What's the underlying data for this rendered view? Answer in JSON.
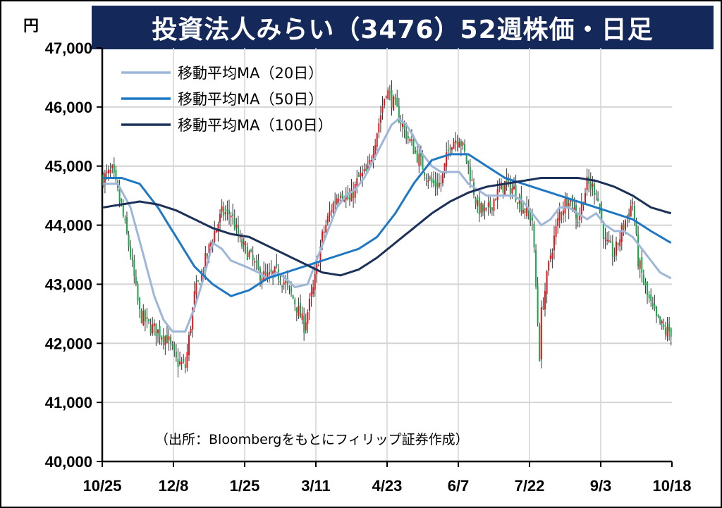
{
  "title": "投資法人みらい（3476）52週株価・日足",
  "source": "（出所：Bloombergをもとにフィリップ証券作成）",
  "colors": {
    "title_bg": "#14295a",
    "up": "#e8141c",
    "down": "#1aa64a",
    "ma20": "#9eb6d8",
    "ma50": "#1f78c4",
    "ma100": "#1b3158",
    "grid": "#d4d4d4"
  },
  "chart_data": {
    "type": "candlestick",
    "title": "投資法人みらい（3476）52週株価・日足",
    "yunit": "円",
    "ylim": [
      40000,
      47000
    ],
    "y_ticks": [
      "47,000",
      "46,000",
      "45,000",
      "44,000",
      "43,000",
      "42,000",
      "41,000",
      "40,000"
    ],
    "x_ticks": [
      "10/25",
      "12/8",
      "1/25",
      "3/11",
      "4/23",
      "6/7",
      "7/22",
      "9/3",
      "10/18"
    ],
    "grid": true,
    "legend_position": "top-left",
    "legend": [
      "移動平均MA（20日）",
      "移動平均MA（50日）",
      "移動平均MA（100日）"
    ],
    "close_keypoints": [
      [
        0,
        44800
      ],
      [
        5,
        44900
      ],
      [
        10,
        44300
      ],
      [
        15,
        43500
      ],
      [
        20,
        42500
      ],
      [
        25,
        42300
      ],
      [
        30,
        42200
      ],
      [
        35,
        42100
      ],
      [
        40,
        41700
      ],
      [
        45,
        41600
      ],
      [
        50,
        42800
      ],
      [
        55,
        43300
      ],
      [
        60,
        43800
      ],
      [
        65,
        44200
      ],
      [
        70,
        44200
      ],
      [
        75,
        43700
      ],
      [
        80,
        43500
      ],
      [
        85,
        43200
      ],
      [
        90,
        43100
      ],
      [
        95,
        43200
      ],
      [
        100,
        43000
      ],
      [
        105,
        42700
      ],
      [
        110,
        42300
      ],
      [
        115,
        42900
      ],
      [
        120,
        43800
      ],
      [
        125,
        44300
      ],
      [
        130,
        44600
      ],
      [
        135,
        44400
      ],
      [
        140,
        44800
      ],
      [
        145,
        44900
      ],
      [
        150,
        45600
      ],
      [
        155,
        46300
      ],
      [
        160,
        46000
      ],
      [
        165,
        45600
      ],
      [
        170,
        45300
      ],
      [
        175,
        45000
      ],
      [
        180,
        44700
      ],
      [
        185,
        44700
      ],
      [
        190,
        45400
      ],
      [
        195,
        45500
      ],
      [
        200,
        45000
      ],
      [
        205,
        44300
      ],
      [
        210,
        44200
      ],
      [
        215,
        44500
      ],
      [
        220,
        44700
      ],
      [
        225,
        44600
      ],
      [
        230,
        44300
      ],
      [
        235,
        44100
      ],
      [
        239,
        41800
      ],
      [
        240,
        42500
      ],
      [
        245,
        43500
      ],
      [
        250,
        44200
      ],
      [
        255,
        44500
      ],
      [
        260,
        44100
      ],
      [
        265,
        44700
      ],
      [
        270,
        44600
      ],
      [
        275,
        43700
      ],
      [
        280,
        43500
      ],
      [
        285,
        44000
      ],
      [
        290,
        44400
      ],
      [
        293,
        43400
      ],
      [
        298,
        42800
      ],
      [
        303,
        42400
      ],
      [
        308,
        42200
      ],
      [
        311,
        42200
      ]
    ],
    "series": [
      {
        "name": "移動平均MA（20日）",
        "keypoints": [
          [
            0,
            44700
          ],
          [
            8,
            44700
          ],
          [
            15,
            44300
          ],
          [
            22,
            43500
          ],
          [
            28,
            42800
          ],
          [
            33,
            42400
          ],
          [
            38,
            42200
          ],
          [
            45,
            42200
          ],
          [
            50,
            42600
          ],
          [
            55,
            43100
          ],
          [
            60,
            43700
          ],
          [
            65,
            43600
          ],
          [
            70,
            43400
          ],
          [
            78,
            43300
          ],
          [
            85,
            43200
          ],
          [
            90,
            43100
          ],
          [
            95,
            43200
          ],
          [
            100,
            43100
          ],
          [
            105,
            42950
          ],
          [
            112,
            43000
          ],
          [
            118,
            43500
          ],
          [
            123,
            43900
          ],
          [
            128,
            44300
          ],
          [
            133,
            44500
          ],
          [
            138,
            44600
          ],
          [
            143,
            44800
          ],
          [
            148,
            45100
          ],
          [
            153,
            45400
          ],
          [
            158,
            45700
          ],
          [
            162,
            45800
          ],
          [
            166,
            45700
          ],
          [
            170,
            45500
          ],
          [
            175,
            45200
          ],
          [
            180,
            45000
          ],
          [
            185,
            44900
          ],
          [
            190,
            44900
          ],
          [
            195,
            44900
          ],
          [
            200,
            44700
          ],
          [
            205,
            44600
          ],
          [
            210,
            44500
          ],
          [
            215,
            44500
          ],
          [
            220,
            44500
          ],
          [
            225,
            44500
          ],
          [
            230,
            44400
          ],
          [
            235,
            44200
          ],
          [
            240,
            44000
          ],
          [
            245,
            44100
          ],
          [
            250,
            44300
          ],
          [
            255,
            44300
          ],
          [
            260,
            44200
          ],
          [
            265,
            44100
          ],
          [
            270,
            44200
          ],
          [
            275,
            44000
          ],
          [
            280,
            43900
          ],
          [
            285,
            43900
          ],
          [
            290,
            43800
          ],
          [
            295,
            43600
          ],
          [
            300,
            43400
          ],
          [
            305,
            43200
          ],
          [
            311,
            43100
          ]
        ]
      },
      {
        "name": "移動平均MA（50日）",
        "keypoints": [
          [
            0,
            44800
          ],
          [
            10,
            44800
          ],
          [
            20,
            44700
          ],
          [
            30,
            44300
          ],
          [
            40,
            43800
          ],
          [
            50,
            43300
          ],
          [
            60,
            43000
          ],
          [
            70,
            42800
          ],
          [
            80,
            42900
          ],
          [
            90,
            43100
          ],
          [
            100,
            43200
          ],
          [
            110,
            43300
          ],
          [
            120,
            43400
          ],
          [
            130,
            43500
          ],
          [
            140,
            43600
          ],
          [
            150,
            43800
          ],
          [
            160,
            44200
          ],
          [
            170,
            44700
          ],
          [
            180,
            45100
          ],
          [
            190,
            45200
          ],
          [
            200,
            45200
          ],
          [
            210,
            45000
          ],
          [
            220,
            44800
          ],
          [
            230,
            44700
          ],
          [
            240,
            44600
          ],
          [
            250,
            44500
          ],
          [
            260,
            44400
          ],
          [
            270,
            44300
          ],
          [
            280,
            44200
          ],
          [
            290,
            44100
          ],
          [
            300,
            43900
          ],
          [
            311,
            43700
          ]
        ]
      },
      {
        "name": "移動平均MA（100日）",
        "keypoints": [
          [
            0,
            44300
          ],
          [
            10,
            44350
          ],
          [
            20,
            44400
          ],
          [
            30,
            44350
          ],
          [
            40,
            44250
          ],
          [
            50,
            44100
          ],
          [
            60,
            43950
          ],
          [
            70,
            43850
          ],
          [
            80,
            43800
          ],
          [
            90,
            43650
          ],
          [
            100,
            43500
          ],
          [
            110,
            43350
          ],
          [
            120,
            43200
          ],
          [
            130,
            43150
          ],
          [
            140,
            43250
          ],
          [
            150,
            43450
          ],
          [
            160,
            43700
          ],
          [
            170,
            43950
          ],
          [
            180,
            44200
          ],
          [
            190,
            44400
          ],
          [
            200,
            44550
          ],
          [
            210,
            44650
          ],
          [
            220,
            44700
          ],
          [
            230,
            44750
          ],
          [
            240,
            44800
          ],
          [
            250,
            44800
          ],
          [
            260,
            44800
          ],
          [
            270,
            44750
          ],
          [
            280,
            44650
          ],
          [
            290,
            44500
          ],
          [
            300,
            44300
          ],
          [
            311,
            44200
          ]
        ]
      }
    ]
  }
}
